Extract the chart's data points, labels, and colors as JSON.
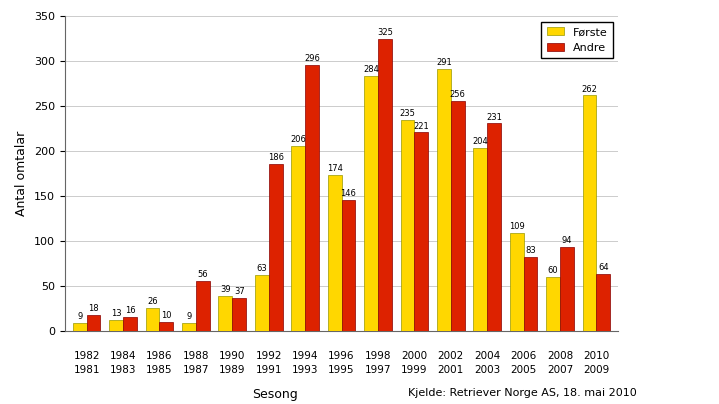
{
  "forste_vals": [
    9,
    13,
    26,
    9,
    39,
    63,
    206,
    174,
    284,
    235,
    291,
    204,
    109,
    60,
    262
  ],
  "andre_vals": [
    18,
    16,
    10,
    56,
    37,
    186,
    296,
    146,
    325,
    221,
    256,
    231,
    83,
    94,
    64
  ],
  "odd_years": [
    "1981",
    "1983",
    "1985",
    "1987",
    "1989",
    "1991",
    "1993",
    "1995",
    "1997",
    "1999",
    "2001",
    "2003",
    "2005",
    "2007",
    "2009"
  ],
  "even_years": [
    "1982",
    "1984",
    "1986",
    "1988",
    "1990",
    "1992",
    "1994",
    "1996",
    "1998",
    "2000",
    "2002",
    "2004",
    "2006",
    "2008",
    "2010"
  ],
  "color_forste": "#FFD700",
  "color_andre": "#DD2200",
  "ylabel": "Antal omtalar",
  "xlabel": "Sesong",
  "source_text": "Kjelde: Retriever Norge AS, 18. mai 2010",
  "ylim": [
    0,
    350
  ],
  "yticks": [
    0,
    50,
    100,
    150,
    200,
    250,
    300,
    350
  ],
  "bar_width": 0.38,
  "legend_labels": [
    "Første",
    "Andre"
  ]
}
